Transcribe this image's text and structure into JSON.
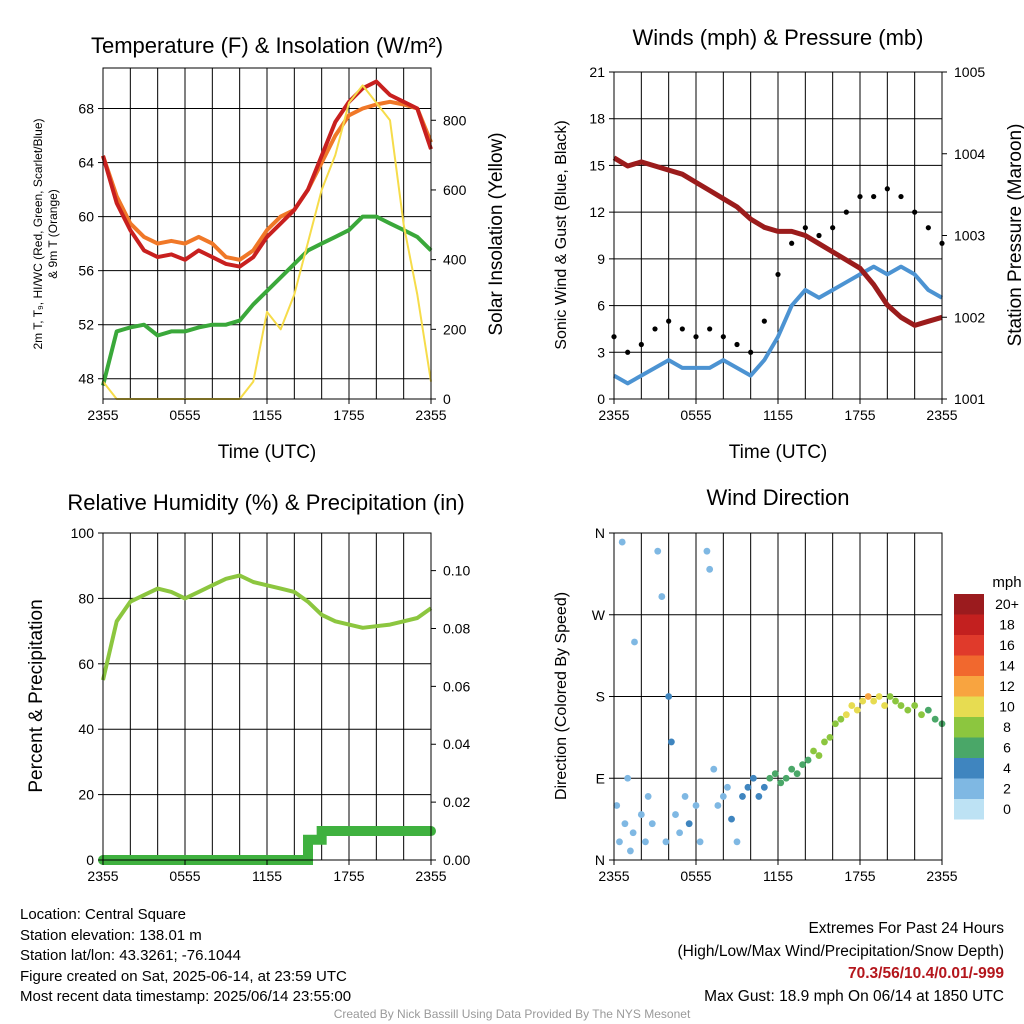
{
  "panels": {
    "temp": {
      "title": "Temperature (F) & Insolation (W/m²)",
      "xlabel": "Time (UTC)",
      "ylabel_left_1": "2m T, T₉, HI/WC (Red, Green, Scarlet/Blue)",
      "ylabel_left_2": "& 9m T (Orange)",
      "ylabel_right": "Solar Insolation (Yellow)"
    },
    "wind": {
      "title": "Winds (mph) & Pressure (mb)",
      "xlabel": "Time (UTC)",
      "ylabel_left": "Sonic Wind & Gust (Blue, Black)",
      "ylabel_right": "Station Pressure (Maroon)"
    },
    "rh": {
      "title": "Relative Humidity (%) & Precipitation (in)",
      "ylabel_left": "Percent & Precipitation"
    },
    "dir": {
      "title": "Wind Direction",
      "ylabel_left": "Direction (Colored By Speed)",
      "colorbar_unit": "mph",
      "colorbar_labels": [
        "20+",
        "18",
        "16",
        "14",
        "12",
        "10",
        "8",
        "6",
        "4",
        "2",
        "0"
      ]
    }
  },
  "colors": {
    "temp_2m": "#c8201f",
    "temp_9m": "#f07828",
    "dewpoint": "#3aa83a",
    "solar": "#f6dc4a",
    "wind": "#4c93d2",
    "gust": "#000000",
    "pressure": "#9b1c1c",
    "rh": "#8cc63f",
    "precip": "#3fb13f",
    "colorbar": [
      "#9b1b1e",
      "#c3201f",
      "#e03a2b",
      "#f1682e",
      "#f8a440",
      "#e7dc51",
      "#8cc63f",
      "#4aa768",
      "#3f85bf",
      "#7fb8e3",
      "#bde2f4"
    ]
  },
  "footer": {
    "location": "Location: Central Square",
    "elevation": "Station elevation: 138.01 m",
    "latlon": "Station lat/lon: 43.3261; -76.1044",
    "created": "Figure created on Sat, 2025-06-14, at 23:59 UTC",
    "recent": "Most recent data timestamp: 2025/06/14 23:55:00",
    "extremes_title": "Extremes For Past 24 Hours",
    "extremes_subtitle": "(High/Low/Max Wind/Precipitation/Snow Depth)",
    "extremes_values": "70.3/56/10.4/0.01/-999",
    "max_gust": "Max Gust: 18.9 mph On 06/14 at 1850 UTC",
    "credit": "Created By Nick Bassill Using Data Provided By The NYS Mesonet"
  },
  "chart_data": [
    {
      "type": "line",
      "title": "Temperature (F) & Insolation (W/m²)",
      "xlabel": "Time (UTC)",
      "x_ticks": [
        "2355",
        "0555",
        "1155",
        "1755",
        "2355"
      ],
      "x": [
        0,
        1,
        2,
        3,
        4,
        5,
        6,
        7,
        8,
        9,
        10,
        11,
        12,
        13,
        14,
        15,
        16,
        17,
        18,
        19,
        20,
        21,
        22,
        23,
        24
      ],
      "ylim": [
        46.5,
        71
      ],
      "y_ticks": [
        48,
        52,
        56,
        60,
        64,
        68
      ],
      "y2lim": [
        0,
        950
      ],
      "y2_ticks": [
        0,
        200,
        400,
        600,
        800
      ],
      "series": [
        {
          "values": [
            64.5,
            61,
            59,
            57.5,
            57,
            57.2,
            56.8,
            57.5,
            57,
            56.5,
            56.3,
            57,
            58.5,
            59.5,
            60.5,
            62,
            64.5,
            67,
            68.5,
            69.5,
            70,
            69,
            68.5,
            68,
            65
          ],
          "axis": "left"
        },
        {
          "values": [
            64.5,
            61.5,
            59.5,
            58.5,
            58,
            58.2,
            58,
            58.5,
            58,
            57,
            56.8,
            57.5,
            59,
            60,
            60.5,
            62,
            64,
            66,
            67.5,
            68,
            68.3,
            68.5,
            68.3,
            68,
            65.5
          ],
          "axis": "left"
        },
        {
          "values": [
            47.5,
            51.5,
            51.8,
            52,
            51.2,
            51.5,
            51.5,
            51.8,
            52,
            52,
            52.3,
            53.5,
            54.5,
            55.5,
            56.5,
            57.5,
            58,
            58.5,
            59,
            60,
            60,
            59.5,
            59,
            58.5,
            57.5
          ],
          "axis": "left"
        },
        {
          "values": [
            50,
            0,
            0,
            0,
            0,
            0,
            0,
            0,
            0,
            0,
            0,
            50,
            250,
            200,
            300,
            450,
            600,
            700,
            850,
            900,
            850,
            800,
            500,
            300,
            50
          ],
          "axis": "right"
        }
      ]
    },
    {
      "type": "line",
      "title": "Winds (mph) & Pressure (mb)",
      "xlabel": "Time (UTC)",
      "x_ticks": [
        "2355",
        "0555",
        "1155",
        "1755",
        "2355"
      ],
      "x": [
        0,
        1,
        2,
        3,
        4,
        5,
        6,
        7,
        8,
        9,
        10,
        11,
        12,
        13,
        14,
        15,
        16,
        17,
        18,
        19,
        20,
        21,
        22,
        23,
        24
      ],
      "ylim": [
        0,
        21
      ],
      "y_ticks": [
        0,
        3,
        6,
        9,
        12,
        15,
        18,
        21
      ],
      "y2lim": [
        1001,
        1005
      ],
      "y2_ticks": [
        1001,
        1002,
        1003,
        1004,
        1005
      ],
      "series": [
        {
          "values": [
            1.5,
            1,
            1.5,
            2,
            2.5,
            2,
            2,
            2,
            2.5,
            2,
            1.5,
            2.5,
            4,
            6,
            7,
            6.5,
            7,
            7.5,
            8,
            8.5,
            8,
            8.5,
            8,
            7,
            6.5
          ],
          "axis": "left"
        },
        {
          "values": [
            4,
            3,
            3.5,
            4.5,
            5,
            4.5,
            4,
            4.5,
            4,
            3.5,
            3,
            5,
            8,
            10,
            11,
            10.5,
            11,
            12,
            13,
            13,
            13.5,
            13,
            12,
            11,
            10
          ],
          "axis": "left"
        },
        {
          "values": [
            1003.95,
            1003.85,
            1003.9,
            1003.85,
            1003.8,
            1003.75,
            1003.65,
            1003.55,
            1003.45,
            1003.35,
            1003.2,
            1003.1,
            1003.05,
            1003.05,
            1003.0,
            1002.9,
            1002.8,
            1002.7,
            1002.6,
            1002.4,
            1002.15,
            1002.0,
            1001.9,
            1001.95,
            1002.0
          ],
          "axis": "right"
        }
      ]
    },
    {
      "type": "line",
      "title": "Relative Humidity (%) & Precipitation (in)",
      "ylabel": "Percent & Precipitation",
      "x_ticks": [
        "2355",
        "0555",
        "1155",
        "1755",
        "2355"
      ],
      "x": [
        0,
        1,
        2,
        3,
        4,
        5,
        6,
        7,
        8,
        9,
        10,
        11,
        12,
        13,
        14,
        15,
        16,
        17,
        18,
        19,
        20,
        21,
        22,
        23,
        24
      ],
      "ylim": [
        0,
        100
      ],
      "y_ticks": [
        0,
        20,
        40,
        60,
        80,
        100
      ],
      "y2lim": [
        0,
        0.113
      ],
      "y2_ticks": [
        "0.00",
        "0.02",
        "0.04",
        "0.06",
        "0.08",
        "0.10"
      ],
      "series": [
        {
          "values": [
            55,
            73,
            79,
            81,
            83,
            82,
            80,
            82,
            84,
            86,
            87,
            85,
            84,
            83,
            82,
            79,
            75,
            73,
            72,
            71,
            71.5,
            72,
            73,
            74,
            77
          ],
          "axis": "left"
        },
        {
          "values": [
            0,
            0,
            0,
            0,
            0,
            0,
            0,
            0,
            0,
            0,
            0,
            0,
            0,
            0,
            0,
            0.007,
            0.01,
            0.01,
            0.01,
            0.01,
            0.01,
            0.01,
            0.01,
            0.01,
            0.01
          ],
          "axis": "right"
        }
      ]
    },
    {
      "type": "scatter",
      "title": "Wind Direction",
      "ylabel": "Direction (Colored By Speed)",
      "x_ticks": [
        "2355",
        "0555",
        "1155",
        "1755",
        "2355"
      ],
      "y_ticks": [
        "N",
        "E",
        "S",
        "W",
        "N"
      ],
      "ylim": [
        0,
        360
      ],
      "colorbar": {
        "unit": "mph",
        "levels": [
          "0",
          "2",
          "4",
          "6",
          "8",
          "10",
          "12",
          "14",
          "16",
          "18",
          "20+"
        ]
      },
      "points": [
        [
          0.2,
          60,
          1
        ],
        [
          0.4,
          20,
          1
        ],
        [
          0.6,
          350,
          1
        ],
        [
          0.8,
          40,
          1
        ],
        [
          1.0,
          90,
          2
        ],
        [
          1.2,
          10,
          1
        ],
        [
          1.4,
          30,
          2
        ],
        [
          1.5,
          240,
          1
        ],
        [
          2.0,
          50,
          1
        ],
        [
          2.3,
          20,
          2
        ],
        [
          2.5,
          70,
          2
        ],
        [
          2.8,
          40,
          2
        ],
        [
          3.2,
          340,
          1
        ],
        [
          3.5,
          290,
          1
        ],
        [
          3.8,
          20,
          2
        ],
        [
          4.0,
          180,
          3
        ],
        [
          4.2,
          130,
          3
        ],
        [
          4.5,
          50,
          2
        ],
        [
          4.8,
          30,
          2
        ],
        [
          5.2,
          70,
          2
        ],
        [
          5.5,
          40,
          3
        ],
        [
          6.0,
          60,
          2
        ],
        [
          6.3,
          20,
          2
        ],
        [
          6.8,
          340,
          2
        ],
        [
          7.0,
          320,
          2
        ],
        [
          7.3,
          100,
          2
        ],
        [
          7.6,
          60,
          2
        ],
        [
          8.0,
          70,
          2
        ],
        [
          8.3,
          80,
          2
        ],
        [
          8.6,
          45,
          3
        ],
        [
          9.0,
          20,
          2
        ],
        [
          9.4,
          70,
          3
        ],
        [
          9.8,
          80,
          3
        ],
        [
          10.2,
          90,
          4
        ],
        [
          10.6,
          70,
          4
        ],
        [
          11.0,
          80,
          4
        ],
        [
          11.4,
          90,
          5
        ],
        [
          11.8,
          95,
          5
        ],
        [
          12.2,
          85,
          5
        ],
        [
          12.6,
          90,
          5
        ],
        [
          13.0,
          100,
          6
        ],
        [
          13.4,
          95,
          6
        ],
        [
          13.8,
          105,
          6
        ],
        [
          14.2,
          110,
          6
        ],
        [
          14.6,
          120,
          7
        ],
        [
          15.0,
          115,
          7
        ],
        [
          15.4,
          130,
          7
        ],
        [
          15.8,
          135,
          8
        ],
        [
          16.2,
          150,
          8
        ],
        [
          16.6,
          155,
          8
        ],
        [
          17.0,
          160,
          9
        ],
        [
          17.4,
          170,
          9
        ],
        [
          17.8,
          165,
          10
        ],
        [
          18.2,
          175,
          10
        ],
        [
          18.6,
          180,
          11
        ],
        [
          19.0,
          175,
          10
        ],
        [
          19.4,
          180,
          9
        ],
        [
          19.8,
          170,
          9
        ],
        [
          20.2,
          180,
          8
        ],
        [
          20.6,
          175,
          8
        ],
        [
          21.0,
          170,
          8
        ],
        [
          21.5,
          165,
          7
        ],
        [
          22.0,
          170,
          7
        ],
        [
          22.5,
          160,
          7
        ],
        [
          23.0,
          165,
          6
        ],
        [
          23.5,
          155,
          6
        ],
        [
          24.0,
          150,
          6
        ]
      ]
    }
  ]
}
